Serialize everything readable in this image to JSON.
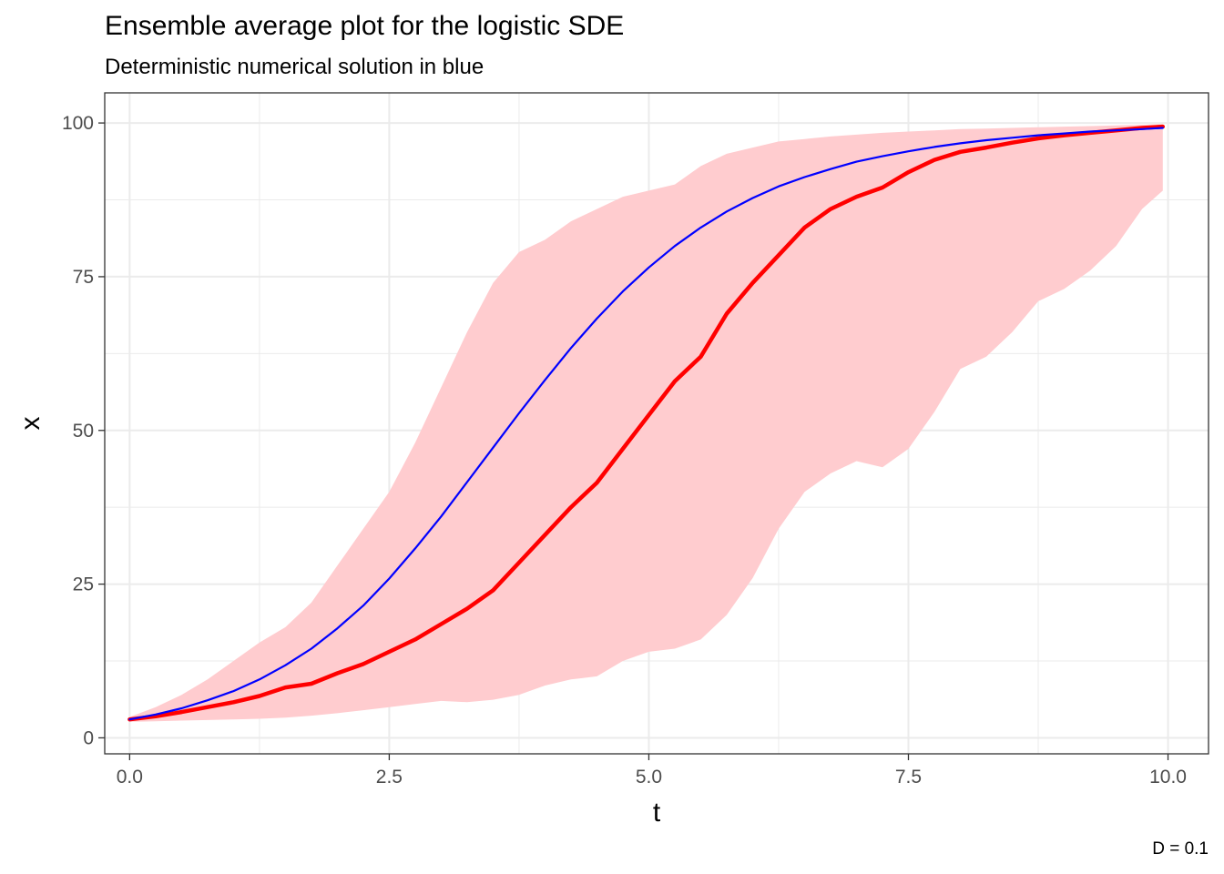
{
  "chart_data": {
    "type": "line",
    "title": "Ensemble average plot for the logistic SDE",
    "subtitle": "Deterministic numerical solution in blue",
    "caption": "D = 0.1",
    "xlabel": "t",
    "ylabel": "x",
    "xlim": [
      -0.24,
      10.39
    ],
    "ylim": [
      -2.6,
      104.9
    ],
    "x_ticks": [
      0,
      2.5,
      5,
      7.5,
      10
    ],
    "x_tick_labels": [
      "0.0",
      "2.5",
      "5.0",
      "7.5",
      "10.0"
    ],
    "y_ticks": [
      0,
      25,
      50,
      75,
      100
    ],
    "y_tick_labels": [
      "0",
      "25",
      "50",
      "75",
      "100"
    ],
    "grid": true,
    "theme": "bw",
    "colors": {
      "ribbon": "#ffcccf",
      "mean": "#ff0000",
      "deterministic": "#0000ff",
      "grid": "#ebebeb",
      "border": "#333333"
    },
    "series": [
      {
        "kind": "line",
        "color": "#ff0000",
        "x": [
          0,
          0.25,
          0.5,
          0.75,
          1.0,
          1.25,
          1.5,
          1.75,
          2.0,
          2.25,
          2.5,
          2.75,
          3.0,
          3.25,
          3.5,
          3.75,
          4.0,
          4.25,
          4.5,
          4.75,
          5.0,
          5.25,
          5.5,
          5.75,
          6.0,
          6.25,
          6.5,
          6.75,
          7.0,
          7.25,
          7.5,
          7.75,
          8.0,
          8.25,
          8.5,
          8.75,
          9.0,
          9.25,
          9.5,
          9.75,
          9.95
        ],
        "y": [
          3.0,
          3.5,
          4.2,
          5.0,
          5.8,
          6.8,
          8.2,
          8.8,
          10.5,
          12.0,
          14.0,
          16.0,
          18.5,
          21.0,
          24.0,
          28.5,
          33.0,
          37.5,
          41.5,
          47.0,
          52.5,
          58.0,
          62.0,
          69.0,
          74.0,
          78.5,
          83.0,
          86.0,
          88.0,
          89.5,
          92.0,
          94.0,
          95.3,
          96.0,
          96.8,
          97.5,
          98.0,
          98.4,
          98.8,
          99.2,
          99.4
        ]
      },
      {
        "kind": "line",
        "color": "#0000ff",
        "x": [
          0,
          0.25,
          0.5,
          0.75,
          1.0,
          1.25,
          1.5,
          1.75,
          2.0,
          2.25,
          2.5,
          2.75,
          3.0,
          3.25,
          3.5,
          3.75,
          4.0,
          4.25,
          4.5,
          4.75,
          5.0,
          5.25,
          5.5,
          5.75,
          6.0,
          6.25,
          6.5,
          6.75,
          7.0,
          7.25,
          7.5,
          7.75,
          8.0,
          8.25,
          8.5,
          8.75,
          9.0,
          9.25,
          9.5,
          9.75,
          9.95
        ],
        "y": [
          3.0,
          3.8,
          4.8,
          6.1,
          7.6,
          9.5,
          11.8,
          14.5,
          17.8,
          21.5,
          25.9,
          30.8,
          36.0,
          41.6,
          47.2,
          52.8,
          58.2,
          63.4,
          68.2,
          72.6,
          76.5,
          80.0,
          83.0,
          85.6,
          87.8,
          89.7,
          91.2,
          92.5,
          93.7,
          94.6,
          95.4,
          96.1,
          96.7,
          97.2,
          97.6,
          98.0,
          98.3,
          98.6,
          98.8,
          99.0,
          99.2
        ]
      },
      {
        "kind": "ribbon",
        "color": "#ffcccf",
        "x": [
          0,
          0.25,
          0.5,
          0.75,
          1.0,
          1.25,
          1.5,
          1.75,
          2.0,
          2.25,
          2.5,
          2.75,
          3.0,
          3.25,
          3.5,
          3.75,
          4.0,
          4.25,
          4.5,
          4.75,
          5.0,
          5.25,
          5.5,
          5.75,
          6.0,
          6.25,
          6.5,
          6.75,
          7.0,
          7.25,
          7.5,
          7.75,
          8.0,
          8.25,
          8.5,
          8.75,
          9.0,
          9.25,
          9.5,
          9.75,
          9.95
        ],
        "ymin": [
          2.6,
          2.7,
          2.8,
          2.9,
          3.0,
          3.1,
          3.3,
          3.6,
          4.0,
          4.5,
          5.0,
          5.5,
          6.0,
          5.8,
          6.2,
          7.0,
          8.5,
          9.5,
          10.0,
          12.5,
          14.0,
          14.5,
          16.0,
          20.0,
          26.0,
          34.0,
          40.0,
          43.0,
          45.0,
          44.0,
          47.0,
          53.0,
          60.0,
          62.0,
          66.0,
          71.0,
          73.0,
          76.0,
          80.0,
          86.0,
          89.0
        ],
        "ymax": [
          3.4,
          5.0,
          7.0,
          9.5,
          12.5,
          15.5,
          18.0,
          22.0,
          28.0,
          34.0,
          40.0,
          48.0,
          57.0,
          66.0,
          74.0,
          79.0,
          81.0,
          84.0,
          86.0,
          88.0,
          89.0,
          90.0,
          93.0,
          95.0,
          96.0,
          97.0,
          97.4,
          97.8,
          98.1,
          98.4,
          98.6,
          98.8,
          99.0,
          99.1,
          99.2,
          99.3,
          99.4,
          99.5,
          99.6,
          99.7,
          99.8
        ]
      }
    ]
  }
}
